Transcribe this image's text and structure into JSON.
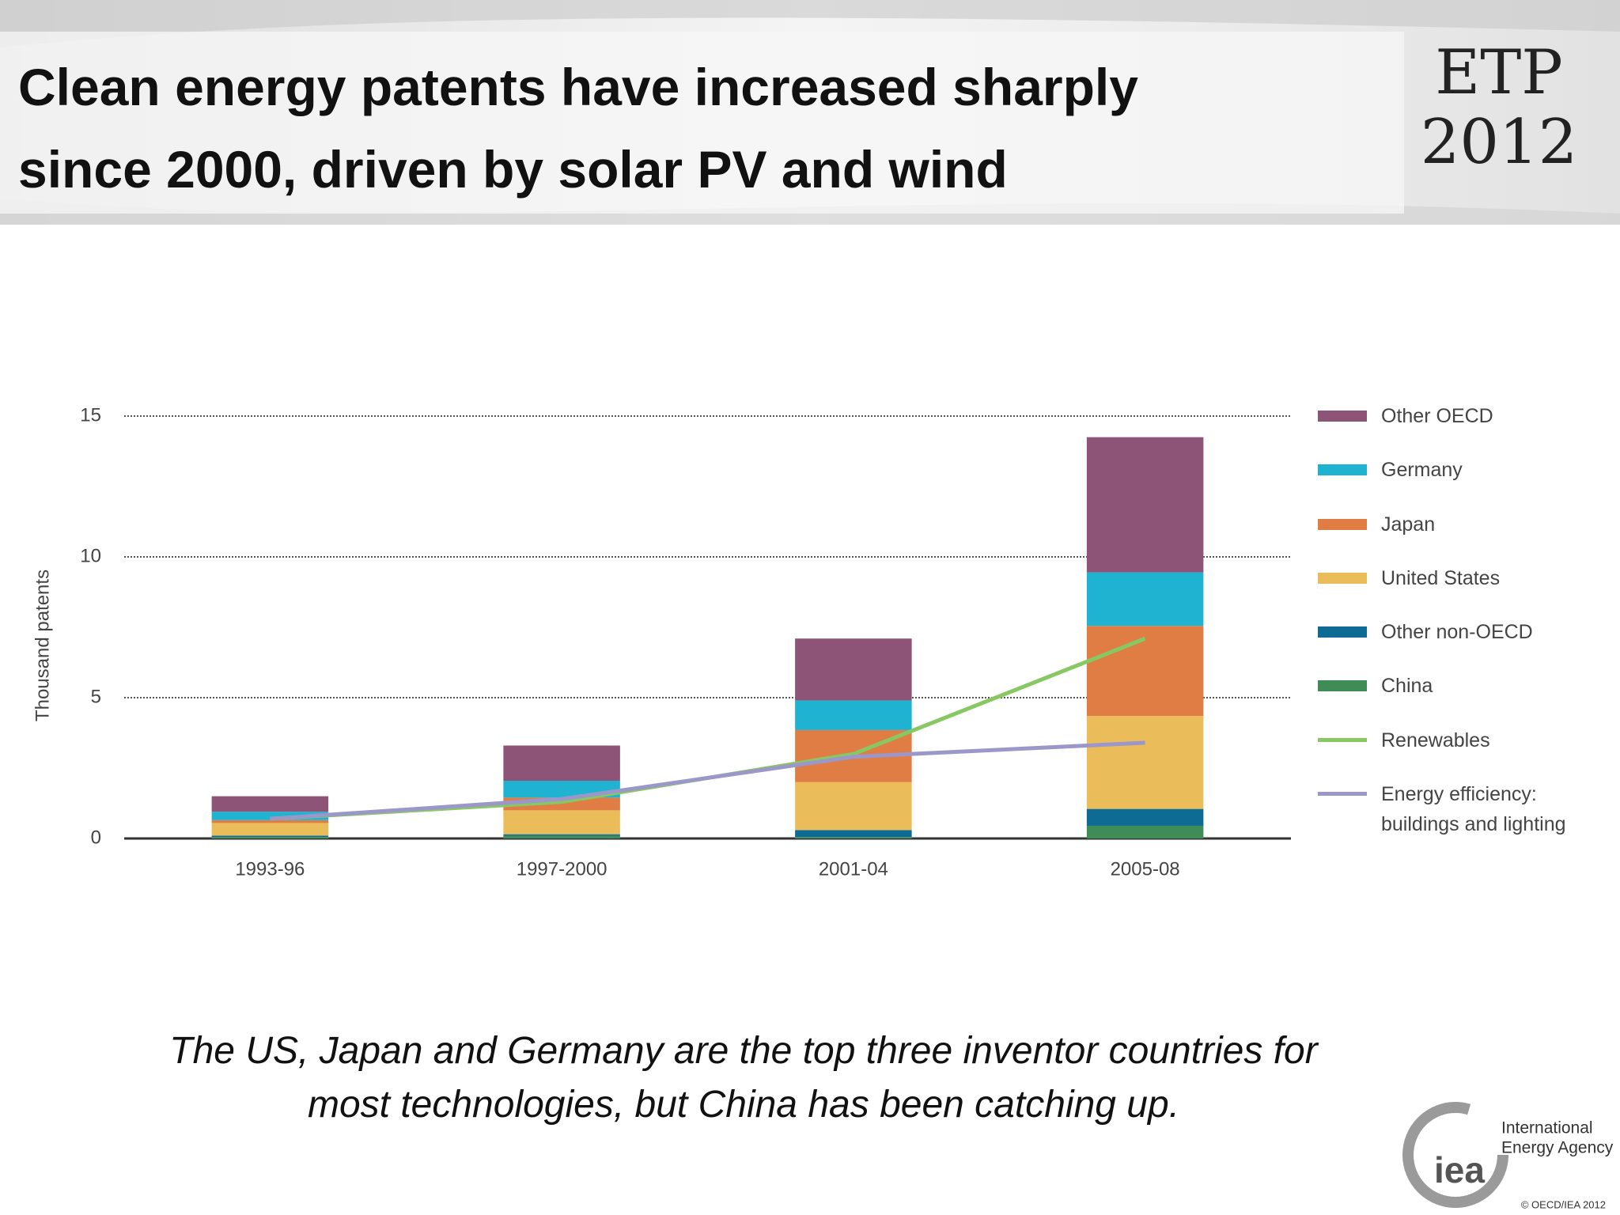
{
  "header": {
    "title": [
      "Clean energy patents have increased sharply",
      "since 2000, driven by solar PV and wind"
    ],
    "badge": [
      "ETP",
      "2012"
    ]
  },
  "chart_data": {
    "type": "bar",
    "stacked": true,
    "y_label": "Thousand patents",
    "categories": [
      "1993-96",
      "1997-2000",
      "2001-04",
      "2005-08"
    ],
    "series": [
      {
        "name": "China",
        "type": "bar",
        "color": "#3f8c57",
        "values": [
          0.05,
          0.1,
          0.05,
          0.45
        ]
      },
      {
        "name": "Other non-OECD",
        "type": "bar",
        "color": "#0d6b94",
        "values": [
          0.05,
          0.05,
          0.25,
          0.6
        ]
      },
      {
        "name": "United States",
        "type": "bar",
        "color": "#ebbd5a",
        "values": [
          0.45,
          0.85,
          1.7,
          3.3
        ]
      },
      {
        "name": "Japan",
        "type": "bar",
        "color": "#e07d45",
        "values": [
          0.1,
          0.45,
          1.85,
          3.2
        ]
      },
      {
        "name": "Germany",
        "type": "bar",
        "color": "#1fb3d1",
        "values": [
          0.3,
          0.6,
          1.05,
          1.9
        ]
      },
      {
        "name": "Other OECD",
        "type": "bar",
        "color": "#8e5478",
        "values": [
          0.55,
          1.25,
          2.2,
          4.8
        ]
      },
      {
        "name": "Renewables",
        "type": "line",
        "color": "#88c863",
        "values": [
          0.7,
          1.3,
          3.0,
          7.1
        ]
      },
      {
        "name": "Energy efficiency: buildings and lighting",
        "type": "line",
        "color": "#9b97c9",
        "values": [
          0.7,
          1.4,
          2.9,
          3.4
        ]
      }
    ],
    "ylim": [
      0,
      15
    ],
    "yticks": [
      0,
      5,
      10,
      15
    ],
    "grid": true,
    "legend": "right"
  },
  "caption": [
    "The US, Japan and Germany are the top three inventor countries for",
    "most technologies, but China has been catching up."
  ],
  "footer": {
    "logo_mark": "iea",
    "logo_text": [
      "International",
      "Energy Agency"
    ],
    "copyright": "© OECD/IEA 2012"
  }
}
